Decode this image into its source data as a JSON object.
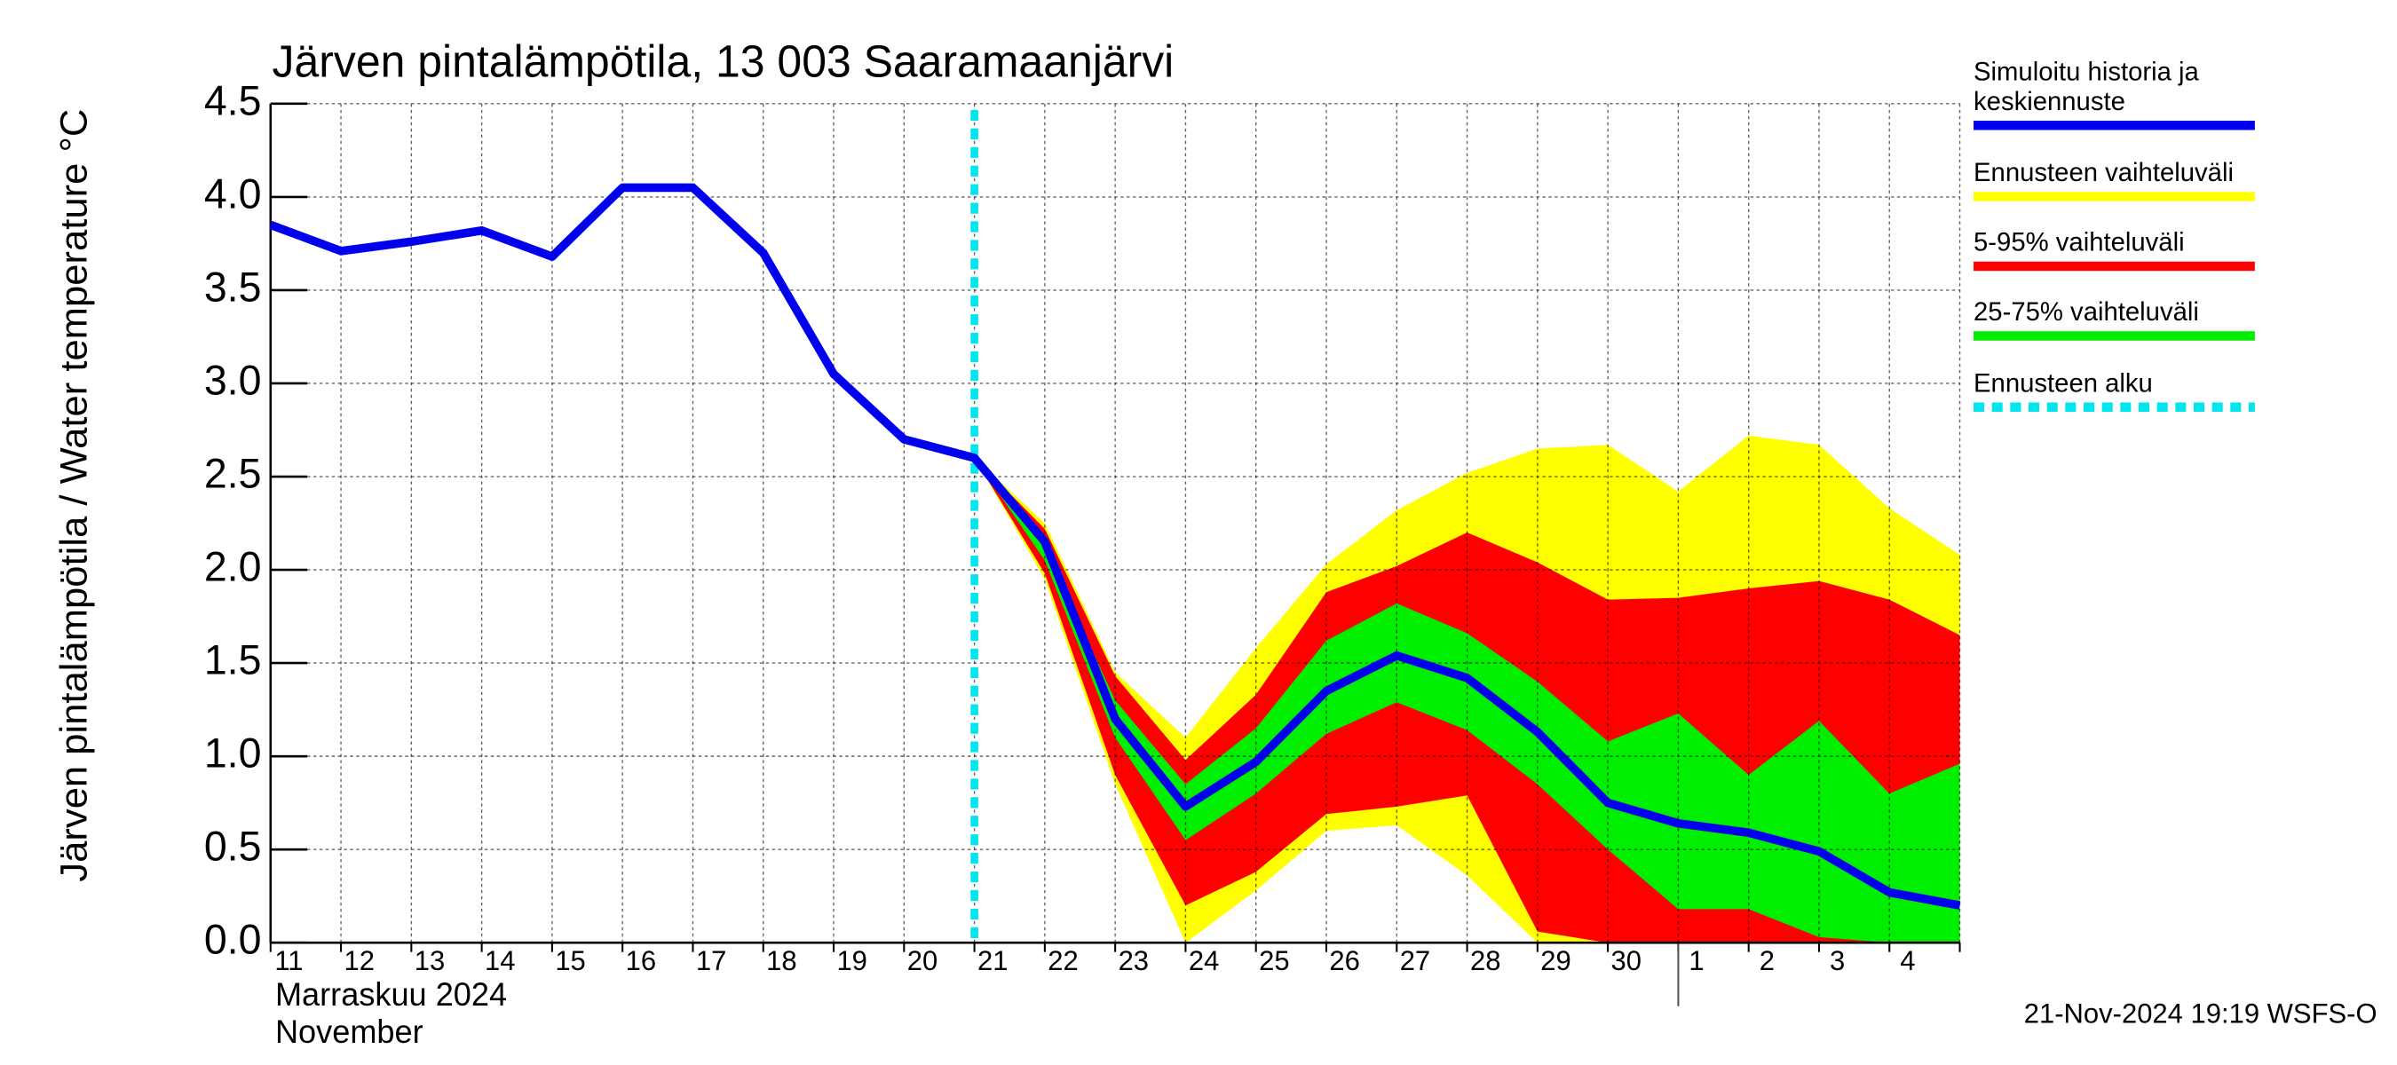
{
  "chart_data": {
    "type": "forecast-band",
    "title": "Järven pintalämpötila, 13 003 Saaramaanjärvi",
    "y_label": "Järven pintalämpötila / Water temperature °C",
    "x_label_fi": "Marraskuu 2024",
    "x_label_en": "November",
    "timestamp": "21-Nov-2024 19:19 WSFS-O",
    "categories": [
      "11",
      "12",
      "13",
      "14",
      "15",
      "16",
      "17",
      "18",
      "19",
      "20",
      "21",
      "22",
      "23",
      "24",
      "25",
      "26",
      "27",
      "28",
      "29",
      "30",
      "1",
      "2",
      "3",
      "4",
      null
    ],
    "month_start": "1",
    "ylim": [
      0,
      4.5
    ],
    "yticks": [
      {
        "value": 0,
        "label": "0.0"
      },
      0.5,
      {
        "value": 1,
        "label": "1.0"
      },
      1.5,
      {
        "value": 2,
        "label": "2.0"
      },
      2.5,
      {
        "value": 3,
        "label": "3.0"
      },
      3.5,
      {
        "value": 4,
        "label": "4.0"
      },
      4.5
    ],
    "grid": true,
    "bands": [
      {
        "name": "Ennusteen vaihteluväli",
        "color": "#ffff00",
        "upper": [
          null,
          null,
          null,
          null,
          null,
          null,
          null,
          null,
          null,
          null,
          2.6,
          2.25,
          1.45,
          1.1,
          1.58,
          2.03,
          2.32,
          2.52,
          2.65,
          2.67,
          2.42,
          2.72,
          2.67,
          2.33,
          2.08
        ],
        "lower": [
          null,
          null,
          null,
          null,
          null,
          null,
          null,
          null,
          null,
          null,
          2.6,
          1.95,
          0.85,
          0,
          0.28,
          0.6,
          0.63,
          0.36,
          0,
          0,
          0,
          0,
          0,
          0,
          0
        ]
      },
      {
        "name": "5-95% vaihteluväli",
        "color": "#ff0000",
        "upper": [
          null,
          null,
          null,
          null,
          null,
          null,
          null,
          null,
          null,
          null,
          2.6,
          2.22,
          1.43,
          0.98,
          1.33,
          1.88,
          2.02,
          2.2,
          2.04,
          1.84,
          1.85,
          1.9,
          1.94,
          1.84,
          1.65
        ],
        "lower": [
          null,
          null,
          null,
          null,
          null,
          null,
          null,
          null,
          null,
          null,
          2.6,
          1.98,
          0.9,
          0.2,
          0.38,
          0.69,
          0.73,
          0.79,
          0.06,
          0,
          0,
          0,
          0,
          0,
          0
        ]
      },
      {
        "name": "25-75% vaihteluväli",
        "color": "#00ee00",
        "upper": [
          null,
          null,
          null,
          null,
          null,
          null,
          null,
          null,
          null,
          null,
          2.6,
          2.12,
          1.3,
          0.85,
          1.15,
          1.62,
          1.82,
          1.66,
          1.4,
          1.08,
          1.23,
          0.9,
          1.19,
          0.8,
          0.96
        ],
        "lower": [
          null,
          null,
          null,
          null,
          null,
          null,
          null,
          null,
          null,
          null,
          2.6,
          2.05,
          1.1,
          0.55,
          0.8,
          1.12,
          1.29,
          1.14,
          0.85,
          0.5,
          0.18,
          0.18,
          0.03,
          0,
          0
        ]
      }
    ],
    "series": [
      {
        "name": "Simuloitu historia ja keskiennuste",
        "color": "#0000ee",
        "values": [
          3.85,
          3.71,
          3.76,
          3.82,
          3.68,
          4.05,
          4.05,
          3.7,
          3.05,
          2.7,
          2.6,
          2.15,
          1.2,
          0.73,
          0.97,
          1.35,
          1.54,
          1.42,
          1.13,
          0.75,
          0.64,
          0.59,
          0.49,
          0.27,
          0.2
        ]
      }
    ],
    "forecast_start": {
      "name": "Ennusteen alku",
      "color": "#00e5ee",
      "x": "21"
    }
  }
}
